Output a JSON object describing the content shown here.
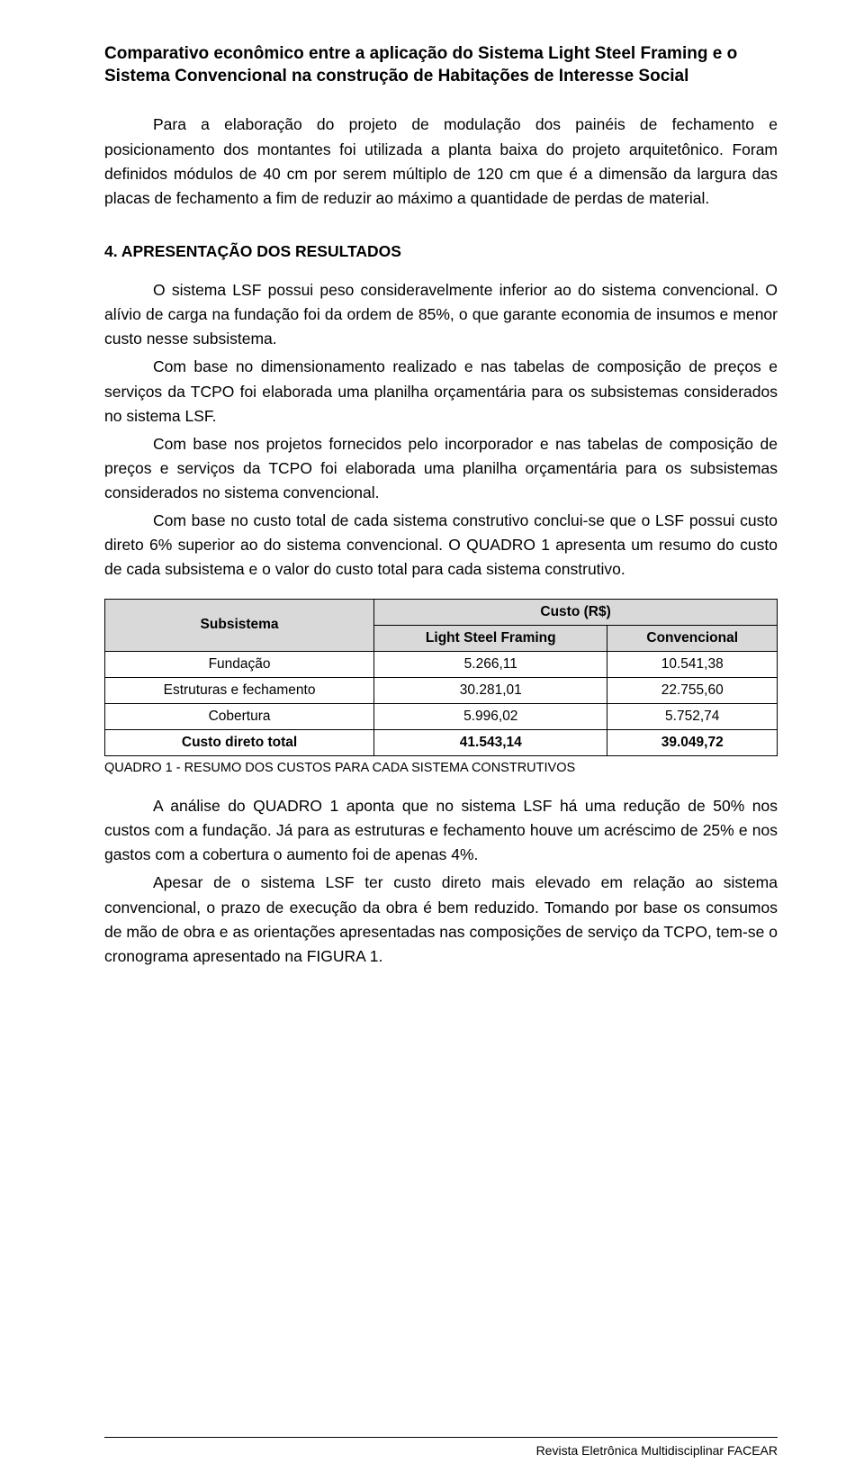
{
  "title": "Comparativo econômico entre a aplicação do Sistema Light Steel Framing e o Sistema Convencional na construção de Habitações de Interesse Social",
  "intro_para": "Para a elaboração do projeto de modulação dos painéis de fechamento e posicionamento dos montantes foi utilizada a planta baixa do projeto arquitetônico. Foram definidos módulos de 40 cm por serem múltiplo de 120 cm que é a dimensão da largura das placas de fechamento a fim de reduzir ao máximo a quantidade de perdas de material.",
  "section_heading": "4. APRESENTAÇÃO DOS RESULTADOS",
  "p1": "O sistema LSF possui peso consideravelmente inferior ao do sistema convencional. O alívio de carga na fundação foi da ordem de 85%, o que garante economia de insumos e menor custo nesse subsistema.",
  "p2": "Com base no dimensionamento realizado e nas tabelas de composição de preços e serviços da TCPO foi elaborada uma planilha orçamentária para os subsistemas considerados no sistema LSF.",
  "p3": "Com base nos projetos fornecidos pelo incorporador e nas tabelas de composição de preços e serviços da TCPO foi elaborada uma planilha orçamentária para os subsistemas considerados no sistema convencional.",
  "p4": "Com base no custo total de cada sistema construtivo conclui-se que o LSF possui custo direto 6% superior ao do sistema convencional. O QUADRO 1 apresenta um resumo do custo de cada subsistema e o valor do custo total para cada sistema construtivo.",
  "table": {
    "type": "table",
    "header_group_label": "Custo (R$)",
    "columns": [
      "Subsistema",
      "Light Steel Framing",
      "Convencional"
    ],
    "rows": [
      [
        "Fundação",
        "5.266,11",
        "10.541,38"
      ],
      [
        "Estruturas e fechamento",
        "30.281,01",
        "22.755,60"
      ],
      [
        "Cobertura",
        "5.996,02",
        "5.752,74"
      ],
      [
        "Custo direto total",
        "41.543,14",
        "39.049,72"
      ]
    ],
    "bold_row_index": 3,
    "header_bg": "#d9d9d9",
    "border_color": "#000000",
    "font_size": 15.5
  },
  "table_caption": "QUADRO 1 - RESUMO DOS CUSTOS PARA CADA SISTEMA CONSTRUTIVOS",
  "p5": "A análise do QUADRO 1 aponta que no sistema LSF há uma redução de 50% nos custos com a fundação. Já para as estruturas e fechamento houve um acréscimo de 25% e nos gastos com a cobertura o aumento foi de apenas 4%.",
  "p6": "Apesar de o sistema LSF ter custo direto mais elevado em relação ao sistema convencional, o prazo de execução da obra é bem reduzido. Tomando por base os consumos de mão de obra e as orientações apresentadas nas composições de serviço da TCPO, tem-se o cronograma apresentado na FIGURA 1.",
  "footer": "Revista Eletrônica Multidisciplinar FACEAR"
}
